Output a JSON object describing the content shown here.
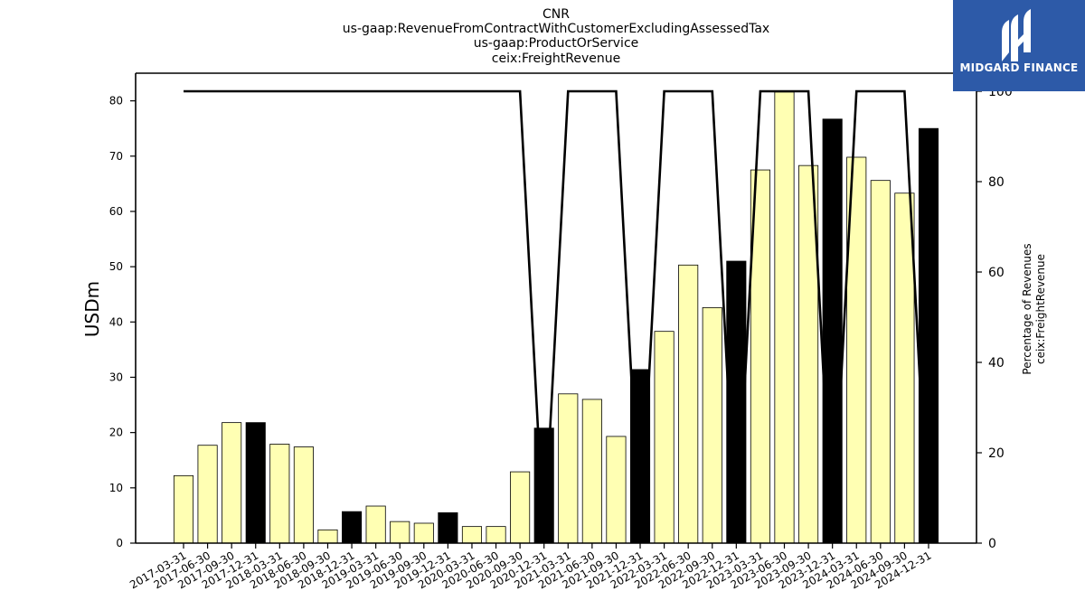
{
  "chart_data": {
    "type": "bar",
    "title_lines": [
      "CNR",
      "us-gaap:RevenueFromContractWithCustomerExcludingAssessedTax",
      "us-gaap:ProductOrService",
      "ceix:FreightRevenue"
    ],
    "ylabel": "USDm",
    "ylabel_right": [
      "Percentage of Revenues",
      "ceix:FreightRevenue"
    ],
    "ylim": [
      0,
      85
    ],
    "ylim_right": [
      0,
      104
    ],
    "yticks": [
      0,
      10,
      20,
      30,
      40,
      50,
      60,
      70,
      80
    ],
    "yticks_right": [
      0,
      20,
      40,
      60,
      80,
      100
    ],
    "categories": [
      "2017-03-31",
      "2017-06-30",
      "2017-09-30",
      "2017-12-31",
      "2018-03-31",
      "2018-06-30",
      "2018-09-30",
      "2018-12-31",
      "2019-03-31",
      "2019-06-30",
      "2019-09-30",
      "2019-12-31",
      "2020-03-31",
      "2020-06-30",
      "2020-09-30",
      "2020-12-31",
      "2021-03-31",
      "2021-06-30",
      "2021-09-30",
      "2021-12-31",
      "2022-03-31",
      "2022-06-30",
      "2022-09-30",
      "2022-12-31",
      "2023-03-31",
      "2023-06-30",
      "2023-09-30",
      "2023-12-31",
      "2024-03-31",
      "2024-06-30",
      "2024-09-30",
      "2024-12-31"
    ],
    "series": [
      {
        "type": "bar",
        "values": [
          12.2,
          17.7,
          21.8,
          21.8,
          17.9,
          17.4,
          2.4,
          5.7,
          6.7,
          3.9,
          3.6,
          5.5,
          3.0,
          3.0,
          12.9,
          20.8,
          27.0,
          26.0,
          19.3,
          31.4,
          38.3,
          50.3,
          42.6,
          51.0,
          67.5,
          81.6,
          68.3,
          76.7,
          69.8,
          65.6,
          63.3,
          75.0
        ],
        "colors": [
          "#ffffb3",
          "#ffffb3",
          "#ffffb3",
          "#000000",
          "#ffffb3",
          "#ffffb3",
          "#ffffb3",
          "#000000",
          "#ffffb3",
          "#ffffb3",
          "#ffffb3",
          "#000000",
          "#ffffb3",
          "#ffffb3",
          "#ffffb3",
          "#000000",
          "#ffffb3",
          "#ffffb3",
          "#ffffb3",
          "#000000",
          "#ffffb3",
          "#ffffb3",
          "#ffffb3",
          "#000000",
          "#ffffb3",
          "#ffffb3",
          "#ffffb3",
          "#000000",
          "#ffffb3",
          "#ffffb3",
          "#ffffb3",
          "#000000"
        ]
      },
      {
        "type": "line",
        "axis": "right",
        "color": "#000000",
        "values": [
          100,
          100,
          100,
          100,
          100,
          100,
          100,
          100,
          100,
          100,
          100,
          100,
          100,
          100,
          100,
          0,
          100,
          100,
          100,
          0,
          100,
          100,
          100,
          0,
          100,
          100,
          100,
          0,
          100,
          100,
          100,
          0
        ]
      }
    ],
    "bar_color": "#ffffb3",
    "bar_color_annual": "#000000",
    "grid": false,
    "legend": "none"
  },
  "logo": {
    "text": "MIDGARD FINANCE",
    "background": "#2d5aa8"
  }
}
